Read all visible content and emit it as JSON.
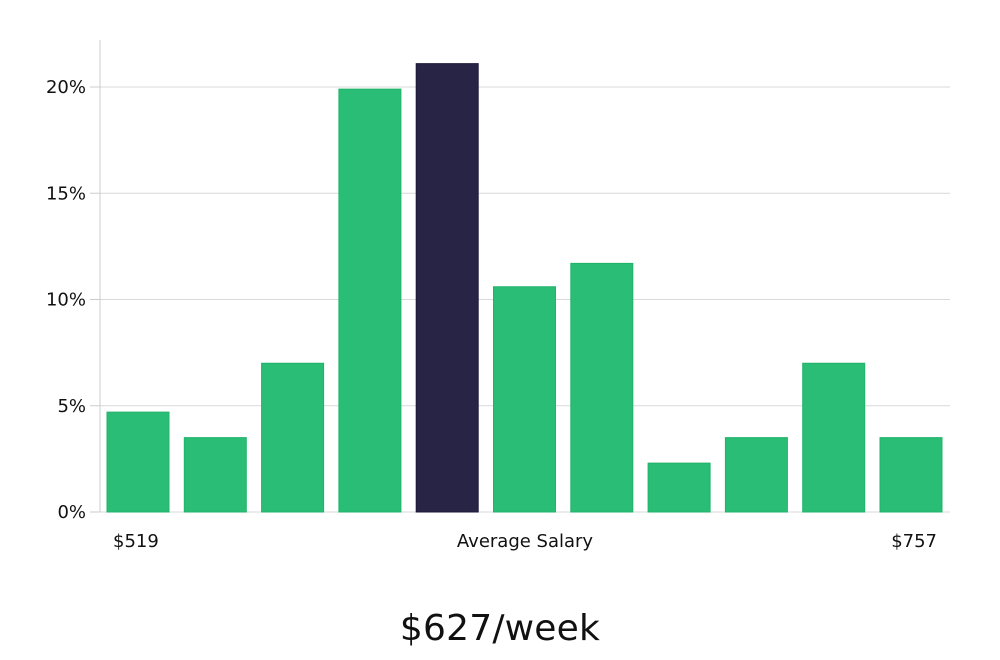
{
  "headline": "$627/week",
  "colors": {
    "bar": "#2abd75",
    "bar_stroke": "#20b36a",
    "highlight": "#282445",
    "grid": "#d9d9d9",
    "axis": "#cccccc"
  },
  "chart_data": {
    "type": "bar",
    "title": "",
    "xlabel": "",
    "ylabel": "",
    "x_annotations": {
      "left": "$519",
      "center": "Average Salary",
      "right": "$757"
    },
    "categories": [
      "",
      "",
      "",
      "",
      "",
      "",
      "",
      "",
      "",
      "",
      ""
    ],
    "values": [
      4.7,
      3.5,
      7.0,
      19.9,
      21.1,
      10.6,
      11.7,
      2.3,
      3.5,
      7.0,
      3.5
    ],
    "highlight_index": 4,
    "ylim": [
      0,
      22
    ],
    "yticks": [
      0,
      5,
      10,
      15,
      20
    ],
    "ytick_labels": [
      "0%",
      "5%",
      "10%",
      "15%",
      "20%"
    ],
    "grid": true,
    "legend": "none"
  }
}
